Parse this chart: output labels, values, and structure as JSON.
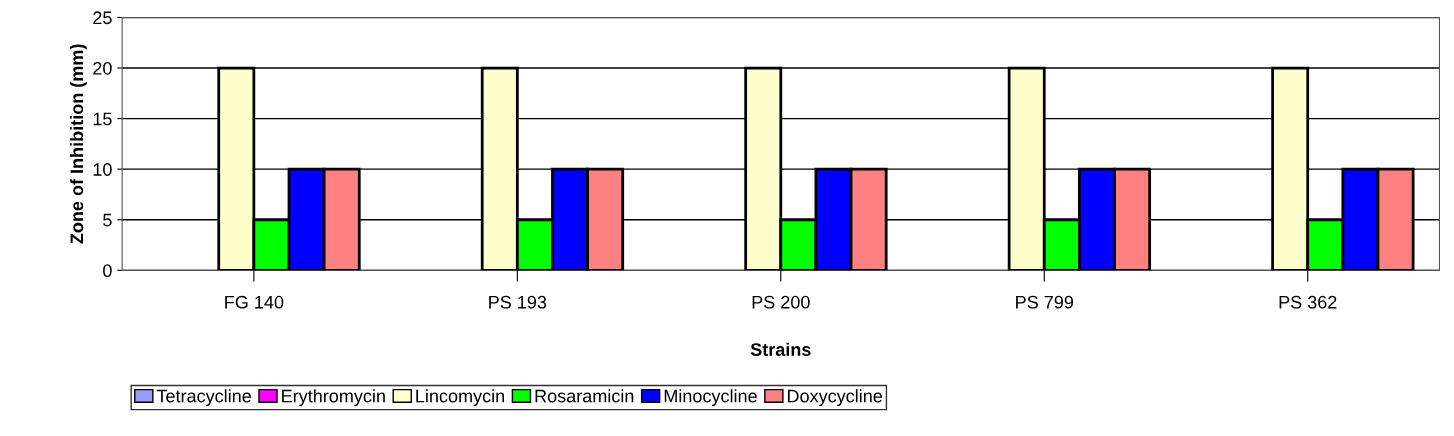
{
  "chart_data": {
    "type": "bar",
    "xlabel": "Strains",
    "ylabel": "Zone of Inhibition (mm)",
    "categories": [
      "FG 140",
      "PS 193",
      "PS 200",
      "PS 799",
      "PS 362"
    ],
    "series": [
      {
        "name": "Tetracycline",
        "color": "#9999ff",
        "values": [
          0,
          0,
          0,
          0,
          0
        ]
      },
      {
        "name": "Erythromycin",
        "color": "#ff00ff",
        "values": [
          0,
          0,
          0,
          0,
          0
        ]
      },
      {
        "name": "Lincomycin",
        "color": "#ffffcc",
        "values": [
          20,
          20,
          20,
          20,
          20
        ]
      },
      {
        "name": "Rosaramicin",
        "color": "#00ff00",
        "values": [
          5,
          5,
          5,
          5,
          5
        ]
      },
      {
        "name": "Minocycline",
        "color": "#0000ff",
        "values": [
          10,
          10,
          10,
          10,
          10
        ]
      },
      {
        "name": "Doxycycline",
        "color": "#ff8080",
        "values": [
          10,
          10,
          10,
          10,
          10
        ]
      }
    ],
    "ylim": [
      0,
      25
    ],
    "yticks": [
      0,
      5,
      10,
      15,
      20,
      25
    ],
    "grid": "y",
    "legend": "bottom"
  }
}
